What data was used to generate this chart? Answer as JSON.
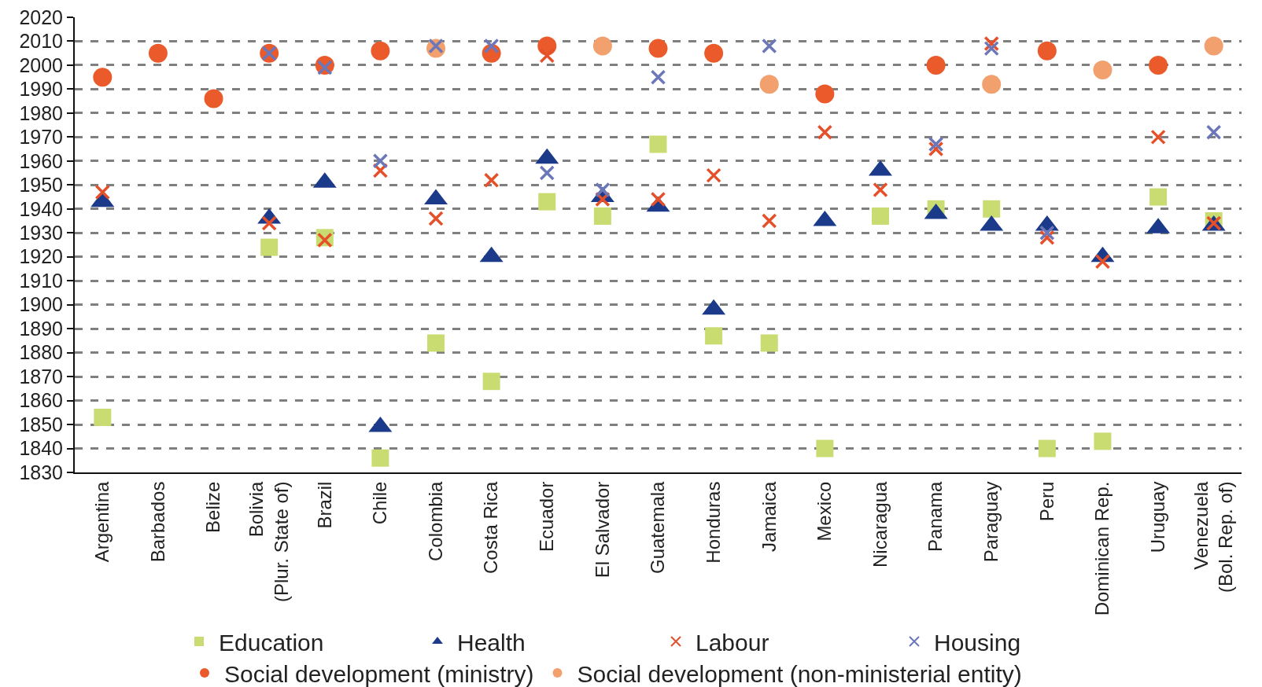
{
  "chart_data": {
    "type": "scatter",
    "categories": [
      "Argentina",
      "Barbados",
      "Belize",
      "Bolivia\n(Plur. State of)",
      "Brazil",
      "Chile",
      "Colombia",
      "Costa Rica",
      "Ecuador",
      "El Salvador",
      "Guatemala",
      "Honduras",
      "Jamaica",
      "Mexico",
      "Nicaragua",
      "Panama",
      "Paraguay",
      "Peru",
      "Dominican Rep.",
      "Uruguay",
      "Venezuela\n(Bol. Rep. of)"
    ],
    "series": [
      {
        "name": "Education",
        "color": "#c9dc72",
        "marker": "square",
        "values": [
          1853,
          null,
          null,
          1924,
          1928,
          1836,
          1884,
          1868,
          1943,
          1937,
          1967,
          1887,
          1884,
          1840,
          1937,
          1940,
          1940,
          1840,
          1843,
          1945,
          1935
        ]
      },
      {
        "name": "Health",
        "color": "#1c3a8a",
        "marker": "triangle",
        "values": [
          1943,
          null,
          null,
          1936,
          1951,
          1849,
          1944,
          1920,
          1961,
          1945,
          1941,
          1898,
          null,
          1935,
          1956,
          1938,
          1933,
          1933,
          1920,
          1932,
          1933
        ]
      },
      {
        "name": "Labour",
        "color": "#e5502a",
        "marker": "cross",
        "values": [
          1947,
          null,
          null,
          1934,
          1927,
          1956,
          1936,
          1952,
          2004,
          1944,
          1944,
          1954,
          1935,
          1972,
          1948,
          1965,
          2009,
          1928,
          1918,
          1970,
          1934
        ]
      },
      {
        "name": "Housing",
        "color": "#6b77b8",
        "marker": "cross",
        "values": [
          null,
          null,
          null,
          2005,
          1999,
          1960,
          2008,
          2008,
          1955,
          1948,
          1995,
          null,
          2008,
          null,
          null,
          1967,
          2007,
          1930,
          null,
          null,
          1972
        ]
      },
      {
        "name": "Social development (ministry)",
        "color": "#ea5a2a",
        "marker": "circle",
        "values": [
          1995,
          2005,
          1986,
          2005,
          2000,
          2006,
          null,
          2005,
          2008,
          null,
          2007,
          2005,
          null,
          1988,
          null,
          2000,
          null,
          2006,
          null,
          2000,
          null
        ]
      },
      {
        "name": "Social development (non-ministerial entity)",
        "color": "#f2a06e",
        "marker": "circle",
        "values": [
          null,
          null,
          null,
          null,
          null,
          null,
          2007,
          null,
          null,
          2008,
          null,
          null,
          1992,
          null,
          null,
          null,
          1992,
          null,
          1998,
          null,
          2008
        ]
      }
    ],
    "ylim": [
      1830,
      2020
    ],
    "yticks": [
      1830,
      1840,
      1850,
      1860,
      1870,
      1880,
      1890,
      1900,
      1910,
      1920,
      1930,
      1940,
      1950,
      1960,
      1970,
      1980,
      1990,
      2000,
      2010,
      2020
    ],
    "grid": "y",
    "legend": "bottom"
  }
}
